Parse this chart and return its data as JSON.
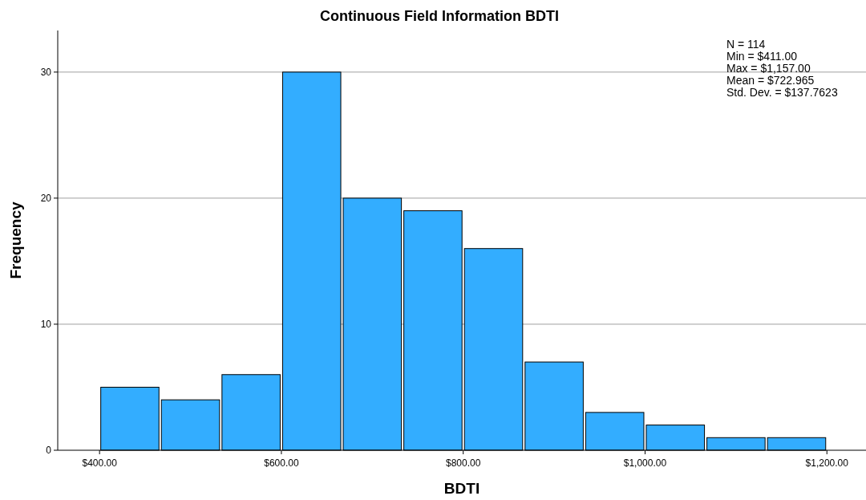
{
  "chart_data": {
    "type": "histogram",
    "title": "Continuous Field Information BDTI",
    "xlabel": "BDTI",
    "ylabel": "Frequency",
    "bins": [
      400,
      466.67,
      533.33,
      600,
      666.67,
      733.33,
      800,
      866.67,
      933.33,
      1000,
      1066.67,
      1133.33,
      1200
    ],
    "values": [
      5,
      4,
      6,
      30,
      20,
      19,
      16,
      7,
      3,
      2,
      1,
      1
    ],
    "color": "#33adff",
    "xlim": [
      354,
      1243
    ],
    "xticks": [
      {
        "value": 400,
        "label": "$400.00"
      },
      {
        "value": 600,
        "label": "$600.00"
      },
      {
        "value": 800,
        "label": "$800.00"
      },
      {
        "value": 1000,
        "label": "$1,000.00"
      },
      {
        "value": 1200,
        "label": "$1,200.00"
      }
    ],
    "ylim": [
      0,
      33.3
    ],
    "yticks": [
      0,
      10,
      20,
      30
    ],
    "grid": "y",
    "annotations": [
      "N = 114",
      "Min = $411.00",
      "Max = $1,157.00",
      "Mean = $722.965",
      "Std. Dev. = $137.7623"
    ]
  }
}
